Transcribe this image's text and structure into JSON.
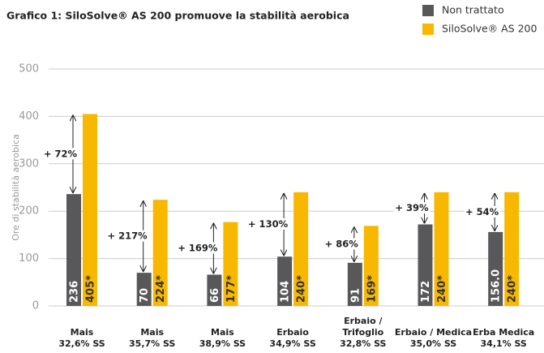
{
  "chart_data": {
    "type": "bar",
    "title": "Grafico 1: SiloSolve® AS 200 promuove la stabilità aerobica",
    "ylabel": "Ore di stabilità aerobica",
    "categories": [
      [
        "Mais",
        "32,6% SS"
      ],
      [
        "Mais",
        "35,7% SS"
      ],
      [
        "Mais",
        "38,9% SS"
      ],
      [
        "Erbaio",
        "34,9% SS"
      ],
      [
        "Erbaio /",
        "Trifoglio",
        "32,8% SS"
      ],
      [
        "Erbaio / Medica",
        "35,0% SS"
      ],
      [
        "Erba Medica",
        "34,1% SS"
      ]
    ],
    "series": [
      {
        "name": "Non trattato",
        "color": "#58585a",
        "values": [
          236,
          70,
          66,
          104,
          91,
          172,
          156
        ],
        "value_labels": [
          "236",
          "70",
          "66",
          "104",
          "91",
          "172",
          "156.0"
        ]
      },
      {
        "name": "SiloSolve® AS 200",
        "color": "#f9b800",
        "values": [
          405,
          224,
          177,
          240,
          169,
          240,
          240
        ],
        "value_labels": [
          "405*",
          "224*",
          "177*",
          "240*",
          "169*",
          "240*",
          "240*"
        ]
      }
    ],
    "annotations": [
      "+ 72%",
      "+ 217%",
      "+ 169%",
      "+ 130%",
      "+ 86%",
      "+ 39%",
      "+ 54%"
    ],
    "ylim": [
      0,
      500
    ],
    "yticks": [
      0,
      100,
      200,
      300,
      400,
      500
    ],
    "grid": true
  }
}
